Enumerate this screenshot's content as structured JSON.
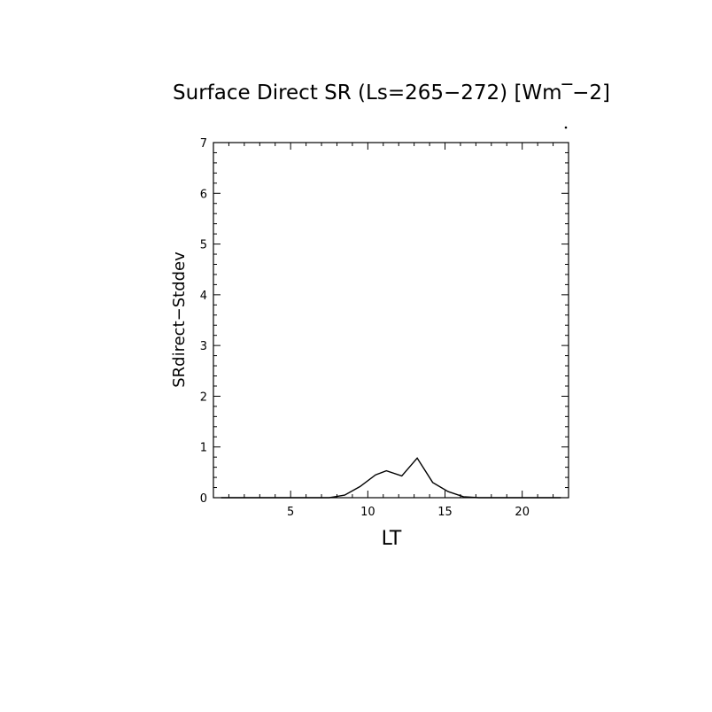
{
  "chart_data": {
    "type": "line",
    "title": "Surface Direct SR (Ls=265−272) [Wm‾−2]",
    "xlabel": "LT",
    "ylabel": "SRdirect−Stddev",
    "xlim": [
      0,
      23
    ],
    "ylim": [
      0,
      7
    ],
    "xticks": [
      5,
      10,
      15,
      20
    ],
    "yticks": [
      0,
      1,
      2,
      3,
      4,
      5,
      6,
      7
    ],
    "grid": false,
    "series": [
      {
        "color": "#000000",
        "x": [
          0.5,
          1.5,
          2.5,
          3.5,
          4.5,
          5.5,
          6.5,
          7.5,
          8.5,
          9.5,
          10.5,
          11.2,
          12.2,
          13.2,
          14.2,
          15.2,
          16.2,
          17.2,
          18.5,
          19.5,
          20.5,
          21.5,
          22.5
        ],
        "values": [
          0,
          0,
          0,
          0,
          0,
          0,
          0,
          0,
          0.05,
          0.22,
          0.45,
          0.53,
          0.43,
          0.78,
          0.3,
          0.12,
          0.02,
          0,
          0,
          0,
          0,
          0,
          0
        ]
      }
    ]
  }
}
